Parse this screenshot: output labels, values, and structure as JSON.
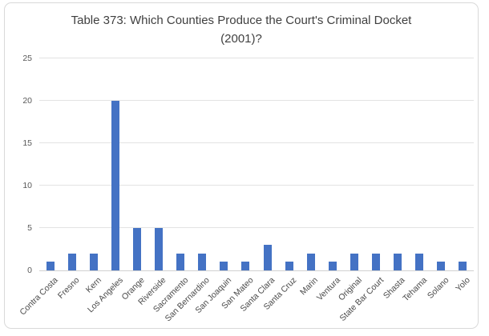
{
  "chart_data": {
    "type": "bar",
    "title": "Table 373: Which Counties Produce the Court's Criminal Docket (2001)?",
    "title_lines": [
      "Table 373: Which Counties Produce the Court's Criminal Docket",
      "(2001)?"
    ],
    "categories": [
      "Contra Costa",
      "Fresno",
      "Kern",
      "Los Angeles",
      "Orange",
      "Riverside",
      "Sacramento",
      "San Bernardino",
      "San Joaquin",
      "San Mateo",
      "Santa Clara",
      "Santa Cruz",
      "Marin",
      "Ventura",
      "Original",
      "State Bar Court",
      "Shasta",
      "Tehama",
      "Solano",
      "Yolo"
    ],
    "values": [
      1,
      2,
      2,
      20,
      5,
      5,
      2,
      2,
      1,
      1,
      3,
      1,
      2,
      1,
      2,
      2,
      2,
      2,
      1,
      1
    ],
    "xlabel": "",
    "ylabel": "",
    "ylim": [
      0,
      25
    ],
    "yticks": [
      0,
      5,
      10,
      15,
      20,
      25
    ],
    "grid": true,
    "legend_position": "none",
    "colors": {
      "bar": "#4472c4",
      "gridline": "#e3e3e3",
      "axis_line": "#d0d0d0",
      "axis_text": "#595959",
      "title_text": "#3f3f3f",
      "frame_border": "#d9d9d9",
      "background": "#ffffff"
    }
  }
}
